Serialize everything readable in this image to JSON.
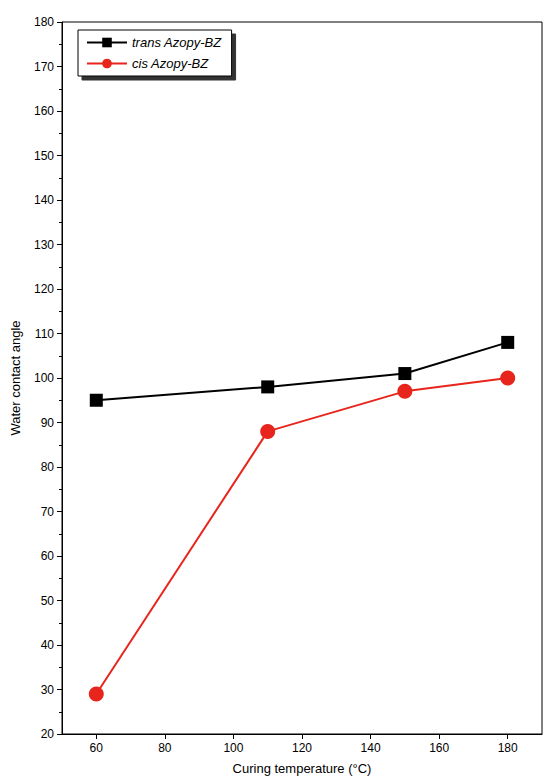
{
  "chart_data": {
    "type": "line",
    "x_label": "Curing temperature (°C)",
    "y_label": "Water contact angle",
    "x": [
      60,
      110,
      150,
      180
    ],
    "xlim": [
      50,
      190
    ],
    "xticks": [
      60,
      80,
      100,
      120,
      140,
      160,
      180
    ],
    "ylim": [
      20,
      180
    ],
    "yticks": [
      20,
      30,
      40,
      50,
      60,
      70,
      80,
      90,
      100,
      110,
      120,
      130,
      140,
      150,
      160,
      170,
      180
    ],
    "grid": false,
    "legend": "upper left",
    "series": [
      {
        "name": "trans Azopy-BZ",
        "color": "#000000",
        "marker": "square",
        "line_style": "solid",
        "values": [
          95,
          98,
          101,
          108
        ]
      },
      {
        "name": "cis Azopy-BZ",
        "color": "#e8251c",
        "marker": "circle",
        "line_style": "solid",
        "values": [
          29,
          88,
          97,
          100
        ]
      }
    ]
  }
}
